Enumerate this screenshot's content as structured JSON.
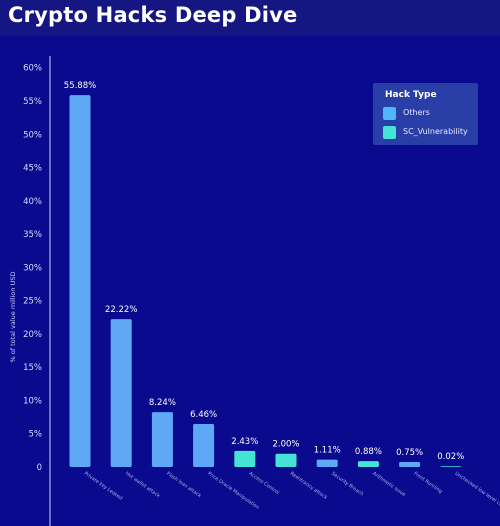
{
  "page": {
    "title": "Crypto Hacks Deep Dive"
  },
  "legend": {
    "title": "Hack Type",
    "items": [
      {
        "label": "Others",
        "color": "#4db8f7"
      },
      {
        "label": "SC_Vulnerability",
        "color": "#45e3d6"
      }
    ]
  },
  "chart_data": {
    "type": "bar",
    "title": "",
    "xlabel": "",
    "ylabel": "% of total value million USD",
    "ylim": [
      0,
      60
    ],
    "yticks": [
      "0",
      "5%",
      "10%",
      "15%",
      "20%",
      "25%",
      "30%",
      "35%",
      "40%",
      "45%",
      "50%",
      "55%",
      "60%"
    ],
    "grid": false,
    "legend_position": "top-right",
    "categories": [
      "Private key Leaked",
      "Hot wallet attack",
      "Flash loan attack",
      "Price Oracle Manipulation",
      "Access Control",
      "Reentrancy attack",
      "Security Breach",
      "Arithmetic Issue",
      "Front Running",
      "Unchecked low level calls"
    ],
    "values": [
      55.88,
      22.22,
      8.24,
      6.46,
      2.43,
      2.0,
      1.11,
      0.88,
      0.75,
      0.02
    ],
    "value_labels": [
      "55.88%",
      "22.22%",
      "8.24%",
      "6.46%",
      "2.43%",
      "2.00%",
      "1.11%",
      "0.88%",
      "0.75%",
      "0.02%"
    ],
    "hack_type": [
      "Others",
      "Others",
      "Others",
      "Others",
      "SC_Vulnerability",
      "SC_Vulnerability",
      "Others",
      "SC_Vulnerability",
      "Others",
      "SC_Vulnerability"
    ],
    "colors": {
      "Others": "#5fa8f5",
      "SC_Vulnerability": "#45e3d6"
    }
  }
}
